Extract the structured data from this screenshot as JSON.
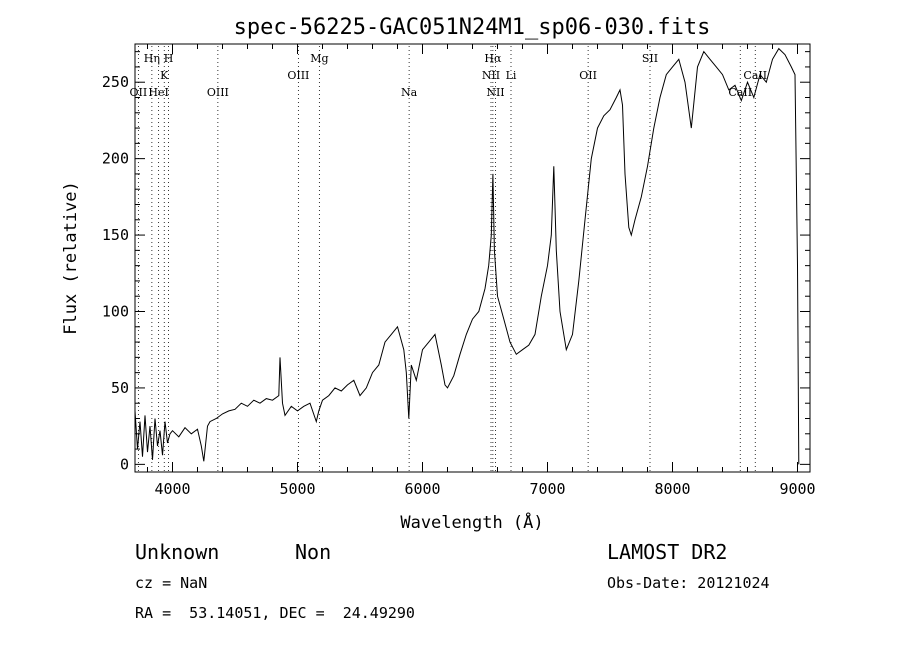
{
  "chart_data": {
    "type": "line",
    "title": "spec-56225-GAC051N24M1_sp06-030.fits",
    "xlabel": "Wavelength (Å)",
    "ylabel": "Flux (relative)",
    "xlim": [
      3700,
      9100
    ],
    "ylim": [
      -5,
      275
    ],
    "x_ticks": [
      4000,
      5000,
      6000,
      7000,
      8000,
      9000
    ],
    "x_tick_labels": [
      "4000",
      "5000",
      "6000",
      "7000",
      "8000",
      "9000"
    ],
    "y_ticks": [
      0,
      50,
      100,
      150,
      200,
      250
    ],
    "y_tick_labels": [
      "0",
      "50",
      "100",
      "150",
      "200",
      "250"
    ],
    "grid": false,
    "series": [
      {
        "x": [
          3700,
          3720,
          3740,
          3760,
          3780,
          3800,
          3820,
          3840,
          3860,
          3880,
          3900,
          3920,
          3940,
          3960,
          3980,
          4000,
          4050,
          4100,
          4150,
          4200,
          4230,
          4250,
          4280,
          4300,
          4350,
          4400,
          4450,
          4500,
          4550,
          4600,
          4650,
          4700,
          4750,
          4800,
          4850,
          4860,
          4880,
          4900,
          4950,
          5000,
          5050,
          5100,
          5150,
          5170,
          5200,
          5250,
          5300,
          5350,
          5400,
          5450,
          5500,
          5550,
          5600,
          5650,
          5700,
          5750,
          5800,
          5850,
          5870,
          5890,
          5910,
          5950,
          6000,
          6050,
          6100,
          6150,
          6180,
          6200,
          6250,
          6300,
          6350,
          6400,
          6450,
          6500,
          6530,
          6550,
          6563,
          6575,
          6600,
          6650,
          6700,
          6750,
          6800,
          6850,
          6900,
          6950,
          7000,
          7030,
          7050,
          7070,
          7100,
          7150,
          7200,
          7250,
          7300,
          7350,
          7400,
          7450,
          7500,
          7550,
          7580,
          7600,
          7620,
          7650,
          7670,
          7700,
          7750,
          7800,
          7850,
          7900,
          7950,
          8000,
          8050,
          8100,
          8150,
          8200,
          8250,
          8300,
          8350,
          8400,
          8450,
          8500,
          8550,
          8600,
          8650,
          8700,
          8750,
          8800,
          8850,
          8900,
          8950,
          8980,
          9000,
          9010
        ],
        "y": [
          35,
          10,
          28,
          5,
          32,
          8,
          25,
          3,
          30,
          12,
          22,
          6,
          28,
          14,
          20,
          22,
          18,
          24,
          20,
          23,
          12,
          2,
          25,
          28,
          30,
          33,
          35,
          36,
          40,
          38,
          42,
          40,
          43,
          42,
          45,
          70,
          40,
          32,
          38,
          35,
          38,
          40,
          28,
          35,
          42,
          45,
          50,
          48,
          52,
          55,
          45,
          50,
          60,
          65,
          80,
          85,
          90,
          75,
          60,
          30,
          65,
          55,
          75,
          80,
          85,
          65,
          52,
          50,
          58,
          72,
          85,
          95,
          100,
          115,
          130,
          150,
          190,
          140,
          110,
          95,
          80,
          72,
          75,
          78,
          85,
          110,
          130,
          150,
          195,
          140,
          100,
          75,
          85,
          120,
          160,
          200,
          220,
          228,
          232,
          240,
          245,
          235,
          190,
          155,
          150,
          160,
          175,
          195,
          220,
          240,
          255,
          260,
          265,
          250,
          220,
          260,
          270,
          265,
          260,
          255,
          245,
          248,
          238,
          250,
          240,
          255,
          250,
          265,
          272,
          268,
          260,
          255,
          130,
          0
        ]
      }
    ],
    "annotations": [
      {
        "label": "OII",
        "x": 3727,
        "row": 3
      },
      {
        "label": "Hη",
        "x": 3835,
        "row": 1
      },
      {
        "label": "HeI",
        "x": 3889,
        "row": 3
      },
      {
        "label": "K",
        "x": 3934,
        "row": 2
      },
      {
        "label": "H",
        "x": 3968,
        "row": 1
      },
      {
        "label": "OIII",
        "x": 4363,
        "row": 3
      },
      {
        "label": "OIII",
        "x": 5007,
        "row": 2
      },
      {
        "label": "Mg",
        "x": 5175,
        "row": 1
      },
      {
        "label": "Na",
        "x": 5893,
        "row": 3
      },
      {
        "label": "Hα",
        "x": 6563,
        "row": 1
      },
      {
        "label": "NII",
        "x": 6548,
        "row": 2
      },
      {
        "label": "NII",
        "x": 6584,
        "row": 3
      },
      {
        "label": "Li",
        "x": 6708,
        "row": 2
      },
      {
        "label": "OII",
        "x": 7325,
        "row": 2
      },
      {
        "label": "SII",
        "x": 7820,
        "row": 1
      },
      {
        "label": "CaII",
        "x": 8542,
        "row": 3
      },
      {
        "label": "CaII",
        "x": 8662,
        "row": 2
      }
    ]
  },
  "info": {
    "class_label": "Unknown",
    "subclass_label": "Non",
    "survey": "LAMOST DR2",
    "cz": "cz = NaN",
    "obs_date": "Obs-Date: 20121024",
    "coords": "RA =  53.14051, DEC =  24.49290"
  }
}
